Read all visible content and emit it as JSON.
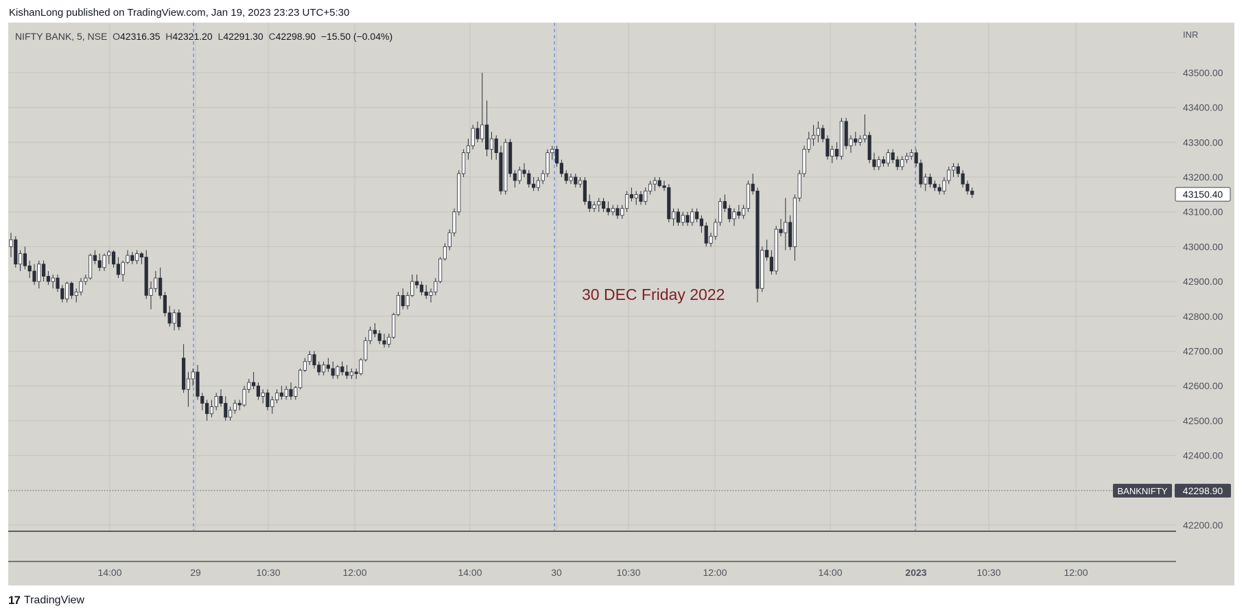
{
  "publisher_text": "KishanLong published on TradingView.com, Jan 19, 2023 23:23 UTC+5:30",
  "symbol": {
    "name": "NIFTY BANK, 5, NSE",
    "o_label": "O",
    "o_value": "42316.35",
    "h_label": "H",
    "h_value": "42321.20",
    "l_label": "L",
    "l_value": "42291.30",
    "c_label": "C",
    "c_value": "42298.90",
    "change": "−15.50 (−0.04%)"
  },
  "currency": "INR",
  "branding": {
    "logo": "17",
    "name": "TradingView"
  },
  "colors": {
    "background": "#d6d5cf",
    "candle_up": "#ffffff",
    "candle_down": "#2a2e39",
    "session_line": "#2962ff",
    "annotation": "#7d1f24",
    "price_tag": "#434651"
  },
  "chart_data": {
    "type": "candlestick",
    "title": "",
    "annotation": "30 DEC Friday 2022",
    "ylim": [
      42150,
      43580
    ],
    "y_ticks": [
      42200,
      42300,
      42400,
      42500,
      42600,
      42700,
      42800,
      42900,
      43000,
      43100,
      43200,
      43300,
      43400,
      43500
    ],
    "y_tick_labels": [
      "42200.00",
      "42300.00",
      "42400.00",
      "42500.00",
      "42600.00",
      "42700.00",
      "42800.00",
      "42900.00",
      "43000.00",
      "43100.00",
      "43200.00",
      "43300.00",
      "43400.00",
      "43500.00"
    ],
    "x_tick_labels": [
      "14:00",
      "29",
      "10:30",
      "12:00",
      "14:00",
      "30",
      "10:30",
      "12:00",
      "14:00",
      "2023",
      "10:30",
      "12:00"
    ],
    "session_breaks": [
      "29",
      "30",
      "2023"
    ],
    "price_tags": [
      {
        "label": "",
        "value": "43150.40",
        "price": 43150.4,
        "style": "outline"
      },
      {
        "label": "BANKNIFTY",
        "value": "42298.90",
        "price": 42298.9,
        "style": "filled"
      }
    ],
    "candles": [
      [
        43000,
        43040,
        42970,
        43020
      ],
      [
        43020,
        43030,
        42940,
        42950
      ],
      [
        42950,
        42990,
        42930,
        42980
      ],
      [
        42980,
        43000,
        42935,
        42945
      ],
      [
        42945,
        42960,
        42910,
        42930
      ],
      [
        42930,
        42950,
        42890,
        42900
      ],
      [
        42900,
        42960,
        42880,
        42950
      ],
      [
        42950,
        42960,
        42900,
        42915
      ],
      [
        42915,
        42930,
        42890,
        42900
      ],
      [
        42900,
        42920,
        42880,
        42910
      ],
      [
        42910,
        42920,
        42870,
        42880
      ],
      [
        42880,
        42890,
        42840,
        42850
      ],
      [
        42850,
        42900,
        42840,
        42895
      ],
      [
        42895,
        42900,
        42850,
        42860
      ],
      [
        42860,
        42880,
        42840,
        42870
      ],
      [
        42870,
        42910,
        42860,
        42900
      ],
      [
        42900,
        42920,
        42890,
        42910
      ],
      [
        42910,
        42980,
        42905,
        42975
      ],
      [
        42975,
        42990,
        42950,
        42960
      ],
      [
        42960,
        42980,
        42930,
        42940
      ],
      [
        42940,
        42980,
        42930,
        42975
      ],
      [
        42975,
        42990,
        42950,
        42985
      ],
      [
        42985,
        42990,
        42940,
        42950
      ],
      [
        42950,
        42970,
        42910,
        42920
      ],
      [
        42920,
        42960,
        42900,
        42955
      ],
      [
        42955,
        42990,
        42950,
        42975
      ],
      [
        42975,
        42985,
        42950,
        42960
      ],
      [
        42960,
        42990,
        42950,
        42980
      ],
      [
        42980,
        42985,
        42950,
        42970
      ],
      [
        42970,
        42990,
        42850,
        42860
      ],
      [
        42860,
        42900,
        42820,
        42880
      ],
      [
        42880,
        42930,
        42870,
        42910
      ],
      [
        42910,
        42940,
        42850,
        42860
      ],
      [
        42860,
        42870,
        42800,
        42810
      ],
      [
        42810,
        42830,
        42770,
        42780
      ],
      [
        42780,
        42820,
        42760,
        42810
      ],
      [
        42810,
        42820,
        42760,
        42770
      ],
      [
        42680,
        42720,
        42580,
        42590
      ],
      [
        42590,
        42640,
        42540,
        42620
      ],
      [
        42620,
        42650,
        42600,
        42640
      ],
      [
        42640,
        42660,
        42560,
        42570
      ],
      [
        42570,
        42580,
        42530,
        42550
      ],
      [
        42550,
        42560,
        42500,
        42520
      ],
      [
        42520,
        42560,
        42510,
        42540
      ],
      [
        42540,
        42580,
        42530,
        42570
      ],
      [
        42570,
        42590,
        42540,
        42550
      ],
      [
        42550,
        42570,
        42500,
        42510
      ],
      [
        42510,
        42540,
        42500,
        42530
      ],
      [
        42530,
        42560,
        42520,
        42550
      ],
      [
        42550,
        42560,
        42530,
        42545
      ],
      [
        42545,
        42600,
        42540,
        42590
      ],
      [
        42590,
        42620,
        42580,
        42610
      ],
      [
        42610,
        42640,
        42590,
        42600
      ],
      [
        42600,
        42610,
        42560,
        42570
      ],
      [
        42570,
        42590,
        42550,
        42580
      ],
      [
        42580,
        42590,
        42530,
        42540
      ],
      [
        42540,
        42570,
        42520,
        42560
      ],
      [
        42560,
        42590,
        42550,
        42580
      ],
      [
        42580,
        42600,
        42560,
        42570
      ],
      [
        42570,
        42600,
        42560,
        42590
      ],
      [
        42590,
        42610,
        42560,
        42570
      ],
      [
        42570,
        42600,
        42560,
        42595
      ],
      [
        42595,
        42650,
        42590,
        42645
      ],
      [
        42645,
        42680,
        42640,
        42670
      ],
      [
        42670,
        42700,
        42660,
        42690
      ],
      [
        42690,
        42700,
        42650,
        42660
      ],
      [
        42660,
        42670,
        42630,
        42640
      ],
      [
        42640,
        42670,
        42630,
        42660
      ],
      [
        42660,
        42680,
        42640,
        42650
      ],
      [
        42650,
        42670,
        42620,
        42630
      ],
      [
        42630,
        42660,
        42620,
        42655
      ],
      [
        42655,
        42670,
        42630,
        42640
      ],
      [
        42640,
        42660,
        42620,
        42630
      ],
      [
        42630,
        42650,
        42620,
        42640
      ],
      [
        42640,
        42650,
        42620,
        42635
      ],
      [
        42635,
        42680,
        42630,
        42675
      ],
      [
        42675,
        42740,
        42670,
        42730
      ],
      [
        42730,
        42770,
        42720,
        42760
      ],
      [
        42760,
        42780,
        42740,
        42750
      ],
      [
        42750,
        42760,
        42720,
        42730
      ],
      [
        42730,
        42750,
        42710,
        42720
      ],
      [
        42720,
        42750,
        42710,
        42740
      ],
      [
        42740,
        42810,
        42735,
        42805
      ],
      [
        42805,
        42870,
        42800,
        42860
      ],
      [
        42860,
        42880,
        42820,
        42830
      ],
      [
        42830,
        42870,
        42820,
        42860
      ],
      [
        42860,
        42920,
        42855,
        42900
      ],
      [
        42900,
        42920,
        42880,
        42890
      ],
      [
        42890,
        42900,
        42860,
        42870
      ],
      [
        42870,
        42890,
        42850,
        42860
      ],
      [
        42860,
        42880,
        42840,
        42870
      ],
      [
        42870,
        42910,
        42860,
        42900
      ],
      [
        42900,
        42970,
        42895,
        42965
      ],
      [
        42965,
        43010,
        42960,
        43000
      ],
      [
        43000,
        43050,
        42990,
        43040
      ],
      [
        43040,
        43110,
        43030,
        43100
      ],
      [
        43100,
        43220,
        43090,
        43210
      ],
      [
        43210,
        43280,
        43200,
        43270
      ],
      [
        43270,
        43310,
        43250,
        43290
      ],
      [
        43290,
        43350,
        43280,
        43340
      ],
      [
        43340,
        43360,
        43300,
        43310
      ],
      [
        43310,
        43500,
        43300,
        43350
      ],
      [
        43350,
        43420,
        43260,
        43280
      ],
      [
        43280,
        43330,
        43250,
        43310
      ],
      [
        43310,
        43320,
        43250,
        43270
      ],
      [
        43270,
        43290,
        43150,
        43160
      ],
      [
        43160,
        43310,
        43150,
        43300
      ],
      [
        43300,
        43310,
        43200,
        43210
      ],
      [
        43210,
        43220,
        43170,
        43190
      ],
      [
        43190,
        43230,
        43180,
        43220
      ],
      [
        43220,
        43240,
        43200,
        43210
      ],
      [
        43210,
        43220,
        43170,
        43180
      ],
      [
        43180,
        43200,
        43160,
        43170
      ],
      [
        43170,
        43200,
        43160,
        43190
      ],
      [
        43190,
        43220,
        43180,
        43210
      ],
      [
        43210,
        43280,
        43200,
        43270
      ],
      [
        43270,
        43290,
        43250,
        43280
      ],
      [
        43280,
        43290,
        43230,
        43240
      ],
      [
        43240,
        43250,
        43200,
        43210
      ],
      [
        43210,
        43220,
        43180,
        43190
      ],
      [
        43190,
        43210,
        43180,
        43200
      ],
      [
        43200,
        43210,
        43170,
        43180
      ],
      [
        43180,
        43200,
        43170,
        43190
      ],
      [
        43190,
        43200,
        43120,
        43130
      ],
      [
        43130,
        43150,
        43100,
        43110
      ],
      [
        43110,
        43130,
        43100,
        43120
      ],
      [
        43120,
        43140,
        43100,
        43130
      ],
      [
        43130,
        43140,
        43100,
        43110
      ],
      [
        43110,
        43130,
        43090,
        43100
      ],
      [
        43100,
        43120,
        43090,
        43110
      ],
      [
        43110,
        43120,
        43080,
        43090
      ],
      [
        43090,
        43120,
        43080,
        43110
      ],
      [
        43110,
        43160,
        43100,
        43150
      ],
      [
        43150,
        43170,
        43130,
        43140
      ],
      [
        43140,
        43160,
        43120,
        43150
      ],
      [
        43150,
        43160,
        43120,
        43130
      ],
      [
        43130,
        43170,
        43120,
        43160
      ],
      [
        43160,
        43190,
        43150,
        43180
      ],
      [
        43180,
        43200,
        43160,
        43190
      ],
      [
        43190,
        43200,
        43170,
        43175
      ],
      [
        43175,
        43190,
        43160,
        43170
      ],
      [
        43170,
        43180,
        43070,
        43080
      ],
      [
        43080,
        43110,
        43060,
        43100
      ],
      [
        43100,
        43110,
        43060,
        43070
      ],
      [
        43070,
        43100,
        43060,
        43090
      ],
      [
        43090,
        43100,
        43060,
        43070
      ],
      [
        43070,
        43110,
        43060,
        43100
      ],
      [
        43100,
        43110,
        43070,
        43080
      ],
      [
        43080,
        43090,
        43040,
        43060
      ],
      [
        43060,
        43070,
        43000,
        43010
      ],
      [
        43010,
        43040,
        43000,
        43030
      ],
      [
        43030,
        43080,
        43020,
        43070
      ],
      [
        43070,
        43140,
        43060,
        43130
      ],
      [
        43130,
        43150,
        43100,
        43110
      ],
      [
        43110,
        43120,
        43070,
        43080
      ],
      [
        43080,
        43110,
        43060,
        43100
      ],
      [
        43100,
        43120,
        43080,
        43090
      ],
      [
        43090,
        43120,
        43080,
        43110
      ],
      [
        43110,
        43190,
        43100,
        43180
      ],
      [
        43180,
        43210,
        43150,
        43160
      ],
      [
        43160,
        43170,
        42840,
        42880
      ],
      [
        42880,
        43000,
        42870,
        42990
      ],
      [
        42990,
        43020,
        42960,
        42970
      ],
      [
        42970,
        42990,
        42920,
        42930
      ],
      [
        42930,
        43060,
        42920,
        43050
      ],
      [
        43050,
        43080,
        43030,
        43040
      ],
      [
        43040,
        43140,
        42990,
        43070
      ],
      [
        43070,
        43090,
        42990,
        43000
      ],
      [
        43000,
        43150,
        42960,
        43140
      ],
      [
        43140,
        43220,
        43130,
        43210
      ],
      [
        43210,
        43290,
        43200,
        43280
      ],
      [
        43280,
        43330,
        43270,
        43310
      ],
      [
        43310,
        43350,
        43290,
        43320
      ],
      [
        43320,
        43360,
        43300,
        43340
      ],
      [
        43340,
        43350,
        43300,
        43310
      ],
      [
        43310,
        43320,
        43250,
        43260
      ],
      [
        43260,
        43290,
        43240,
        43280
      ],
      [
        43280,
        43300,
        43250,
        43260
      ],
      [
        43260,
        43370,
        43250,
        43360
      ],
      [
        43360,
        43370,
        43280,
        43290
      ],
      [
        43290,
        43320,
        43270,
        43310
      ],
      [
        43310,
        43330,
        43290,
        43300
      ],
      [
        43300,
        43320,
        43290,
        43310
      ],
      [
        43310,
        43380,
        43300,
        43320
      ],
      [
        43320,
        43330,
        43240,
        43250
      ],
      [
        43250,
        43270,
        43220,
        43230
      ],
      [
        43230,
        43260,
        43220,
        43250
      ],
      [
        43250,
        43260,
        43230,
        43240
      ],
      [
        43240,
        43280,
        43230,
        43270
      ],
      [
        43270,
        43280,
        43240,
        43250
      ],
      [
        43250,
        43260,
        43220,
        43230
      ],
      [
        43230,
        43260,
        43220,
        43250
      ],
      [
        43250,
        43270,
        43240,
        43260
      ],
      [
        43260,
        43280,
        43250,
        43270
      ],
      [
        43270,
        43280,
        43230,
        43240
      ],
      [
        43240,
        43250,
        43170,
        43180
      ],
      [
        43180,
        43210,
        43160,
        43200
      ],
      [
        43200,
        43210,
        43170,
        43180
      ],
      [
        43180,
        43190,
        43160,
        43170
      ],
      [
        43170,
        43180,
        43150,
        43160
      ],
      [
        43160,
        43200,
        43150,
        43190
      ],
      [
        43190,
        43230,
        43180,
        43220
      ],
      [
        43220,
        43240,
        43200,
        43230
      ],
      [
        43230,
        43240,
        43200,
        43210
      ],
      [
        43210,
        43220,
        43170,
        43180
      ],
      [
        43180,
        43190,
        43150,
        43160
      ],
      [
        43160,
        43170,
        43140,
        43150
      ]
    ]
  }
}
